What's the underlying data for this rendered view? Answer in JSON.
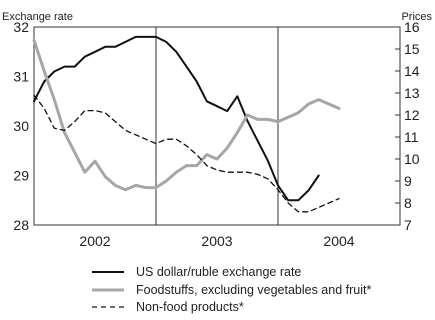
{
  "chart_data": {
    "type": "line",
    "ylabel_left": "Exchange rate",
    "ylabel_right": "Prices",
    "xlim": [
      0,
      36
    ],
    "ylim_left": [
      28,
      32
    ],
    "ylim_right": [
      7,
      16
    ],
    "yticks_left": [
      "28",
      "29",
      "30",
      "31",
      "32"
    ],
    "yticks_right": [
      "7",
      "8",
      "9",
      "10",
      "11",
      "12",
      "13",
      "14",
      "15",
      "16"
    ],
    "x_categories": [
      "2002",
      "2003",
      "2004"
    ],
    "year_boundaries": [
      12,
      24
    ],
    "series": [
      {
        "name": "US dollar/ruble exchange rate",
        "axis": "left",
        "color": "#111111",
        "dash": "",
        "x": [
          0,
          1,
          2,
          3,
          4,
          5,
          6,
          7,
          8,
          9,
          10,
          11,
          12,
          13,
          14,
          15,
          16,
          17,
          18,
          19,
          20,
          21,
          22,
          23,
          24,
          25,
          26,
          27,
          28
        ],
        "values": [
          30.5,
          30.9,
          31.1,
          31.2,
          31.2,
          31.4,
          31.5,
          31.6,
          31.6,
          31.7,
          31.8,
          31.8,
          31.8,
          31.7,
          31.5,
          31.2,
          30.9,
          30.5,
          30.4,
          30.3,
          30.6,
          30.1,
          29.7,
          29.3,
          28.8,
          28.5,
          28.5,
          28.7,
          29.0
        ]
      },
      {
        "name": "Foodstuffs, excluding vegetables and fruit*",
        "axis": "right",
        "color": "#a6a6a6",
        "dash": "",
        "x": [
          0,
          1,
          2,
          3,
          4,
          5,
          6,
          7,
          8,
          9,
          10,
          11,
          12,
          13,
          14,
          15,
          16,
          17,
          18,
          19,
          20,
          21,
          22,
          23,
          24,
          25,
          26,
          27,
          28,
          29,
          30
        ],
        "values": [
          15.4,
          14.0,
          12.7,
          11.2,
          10.3,
          9.4,
          9.9,
          9.2,
          8.8,
          8.6,
          8.8,
          8.7,
          8.7,
          9.0,
          9.4,
          9.7,
          9.7,
          10.2,
          10.0,
          10.5,
          11.2,
          12.0,
          11.8,
          11.8,
          11.7,
          11.9,
          12.1,
          12.5,
          12.7,
          12.5,
          12.3
        ]
      },
      {
        "name": "Non-food products*",
        "axis": "right",
        "color": "#111111",
        "dash": "5,4",
        "x": [
          0,
          1,
          2,
          3,
          4,
          5,
          6,
          7,
          8,
          9,
          10,
          11,
          12,
          13,
          14,
          15,
          16,
          17,
          18,
          19,
          20,
          21,
          22,
          23,
          24,
          25,
          26,
          27,
          28,
          29,
          30
        ],
        "values": [
          12.9,
          12.3,
          11.4,
          11.3,
          11.7,
          12.2,
          12.2,
          12.1,
          11.7,
          11.3,
          11.1,
          10.9,
          10.7,
          10.9,
          10.9,
          10.6,
          10.2,
          9.7,
          9.5,
          9.4,
          9.4,
          9.4,
          9.3,
          9.1,
          8.6,
          8.0,
          7.6,
          7.6,
          7.8,
          8.0,
          8.2
        ]
      }
    ],
    "legend_position": "bottom"
  }
}
